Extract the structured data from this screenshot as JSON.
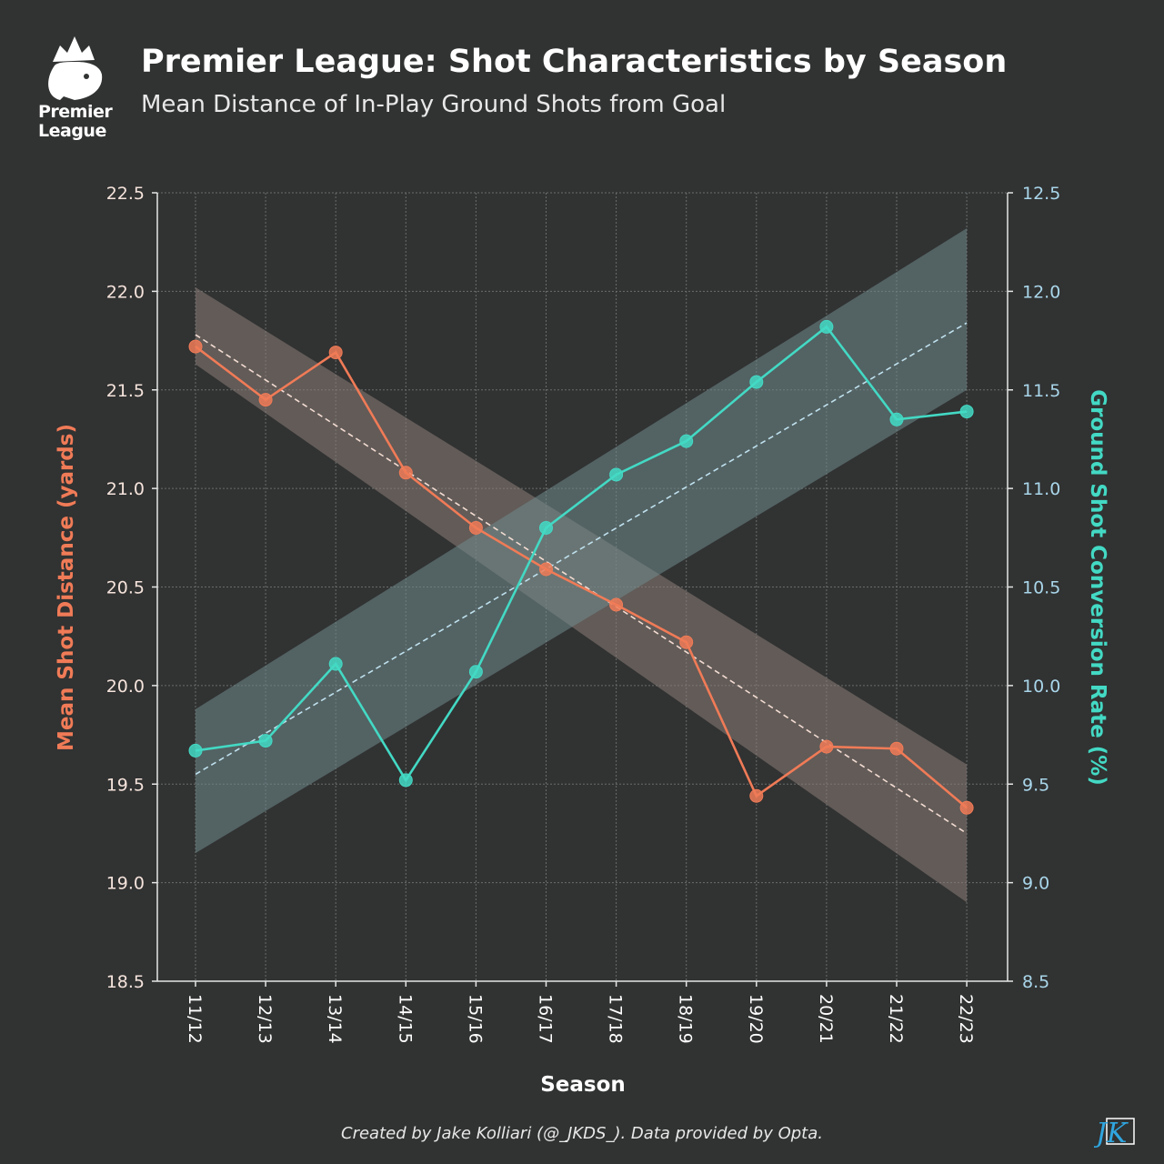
{
  "header": {
    "title": "Premier League: Shot Characteristics by Season",
    "subtitle": "Mean Distance of In-Play Ground Shots from Goal",
    "logo_line1": "Premier",
    "logo_line2": "League"
  },
  "footer": {
    "credit": "Created by Jake Kolliari (@_JKDS_). Data provided by Opta.",
    "monogram": "JK"
  },
  "colors": {
    "background": "#313232",
    "distance": "#f07b57",
    "conversion": "#43d9c4",
    "left_axis_text": "#f5e4dc",
    "right_axis_text": "#a9d6ea"
  },
  "chart_data": {
    "type": "line",
    "xlabel": "Season",
    "categories": [
      "11/12",
      "12/13",
      "13/14",
      "14/15",
      "15/16",
      "16/17",
      "17/18",
      "18/19",
      "19/20",
      "20/21",
      "21/22",
      "22/23"
    ],
    "y_left": {
      "label": "Mean Shot Distance (yards)",
      "ylim": [
        18.5,
        22.5
      ],
      "ticks": [
        "18.5",
        "19.0",
        "19.5",
        "20.0",
        "20.5",
        "21.0",
        "21.5",
        "22.0",
        "22.5"
      ]
    },
    "y_right": {
      "label": "Ground Shot Conversion Rate (%)",
      "ylim": [
        8.5,
        12.5
      ],
      "ticks": [
        "8.5",
        "9.0",
        "9.5",
        "10.0",
        "10.5",
        "11.0",
        "11.5",
        "12.0",
        "12.5"
      ]
    },
    "series": [
      {
        "axis": "left",
        "values": [
          21.72,
          21.45,
          21.69,
          21.08,
          20.8,
          20.59,
          20.41,
          20.22,
          19.44,
          19.69,
          19.68,
          19.38
        ],
        "trend": [
          21.78,
          19.25
        ],
        "band_upper": [
          22.02,
          19.6
        ],
        "band_lower": [
          21.63,
          18.9
        ]
      },
      {
        "axis": "right",
        "values": [
          9.67,
          9.72,
          10.11,
          9.52,
          10.07,
          10.8,
          11.07,
          11.24,
          11.54,
          11.82,
          11.35,
          11.39
        ],
        "trend": [
          9.55,
          11.84
        ],
        "band_upper": [
          9.88,
          12.32
        ],
        "band_lower": [
          9.15,
          11.5
        ]
      }
    ],
    "grid": true,
    "trendline": "dashed",
    "confidence_band": true
  }
}
